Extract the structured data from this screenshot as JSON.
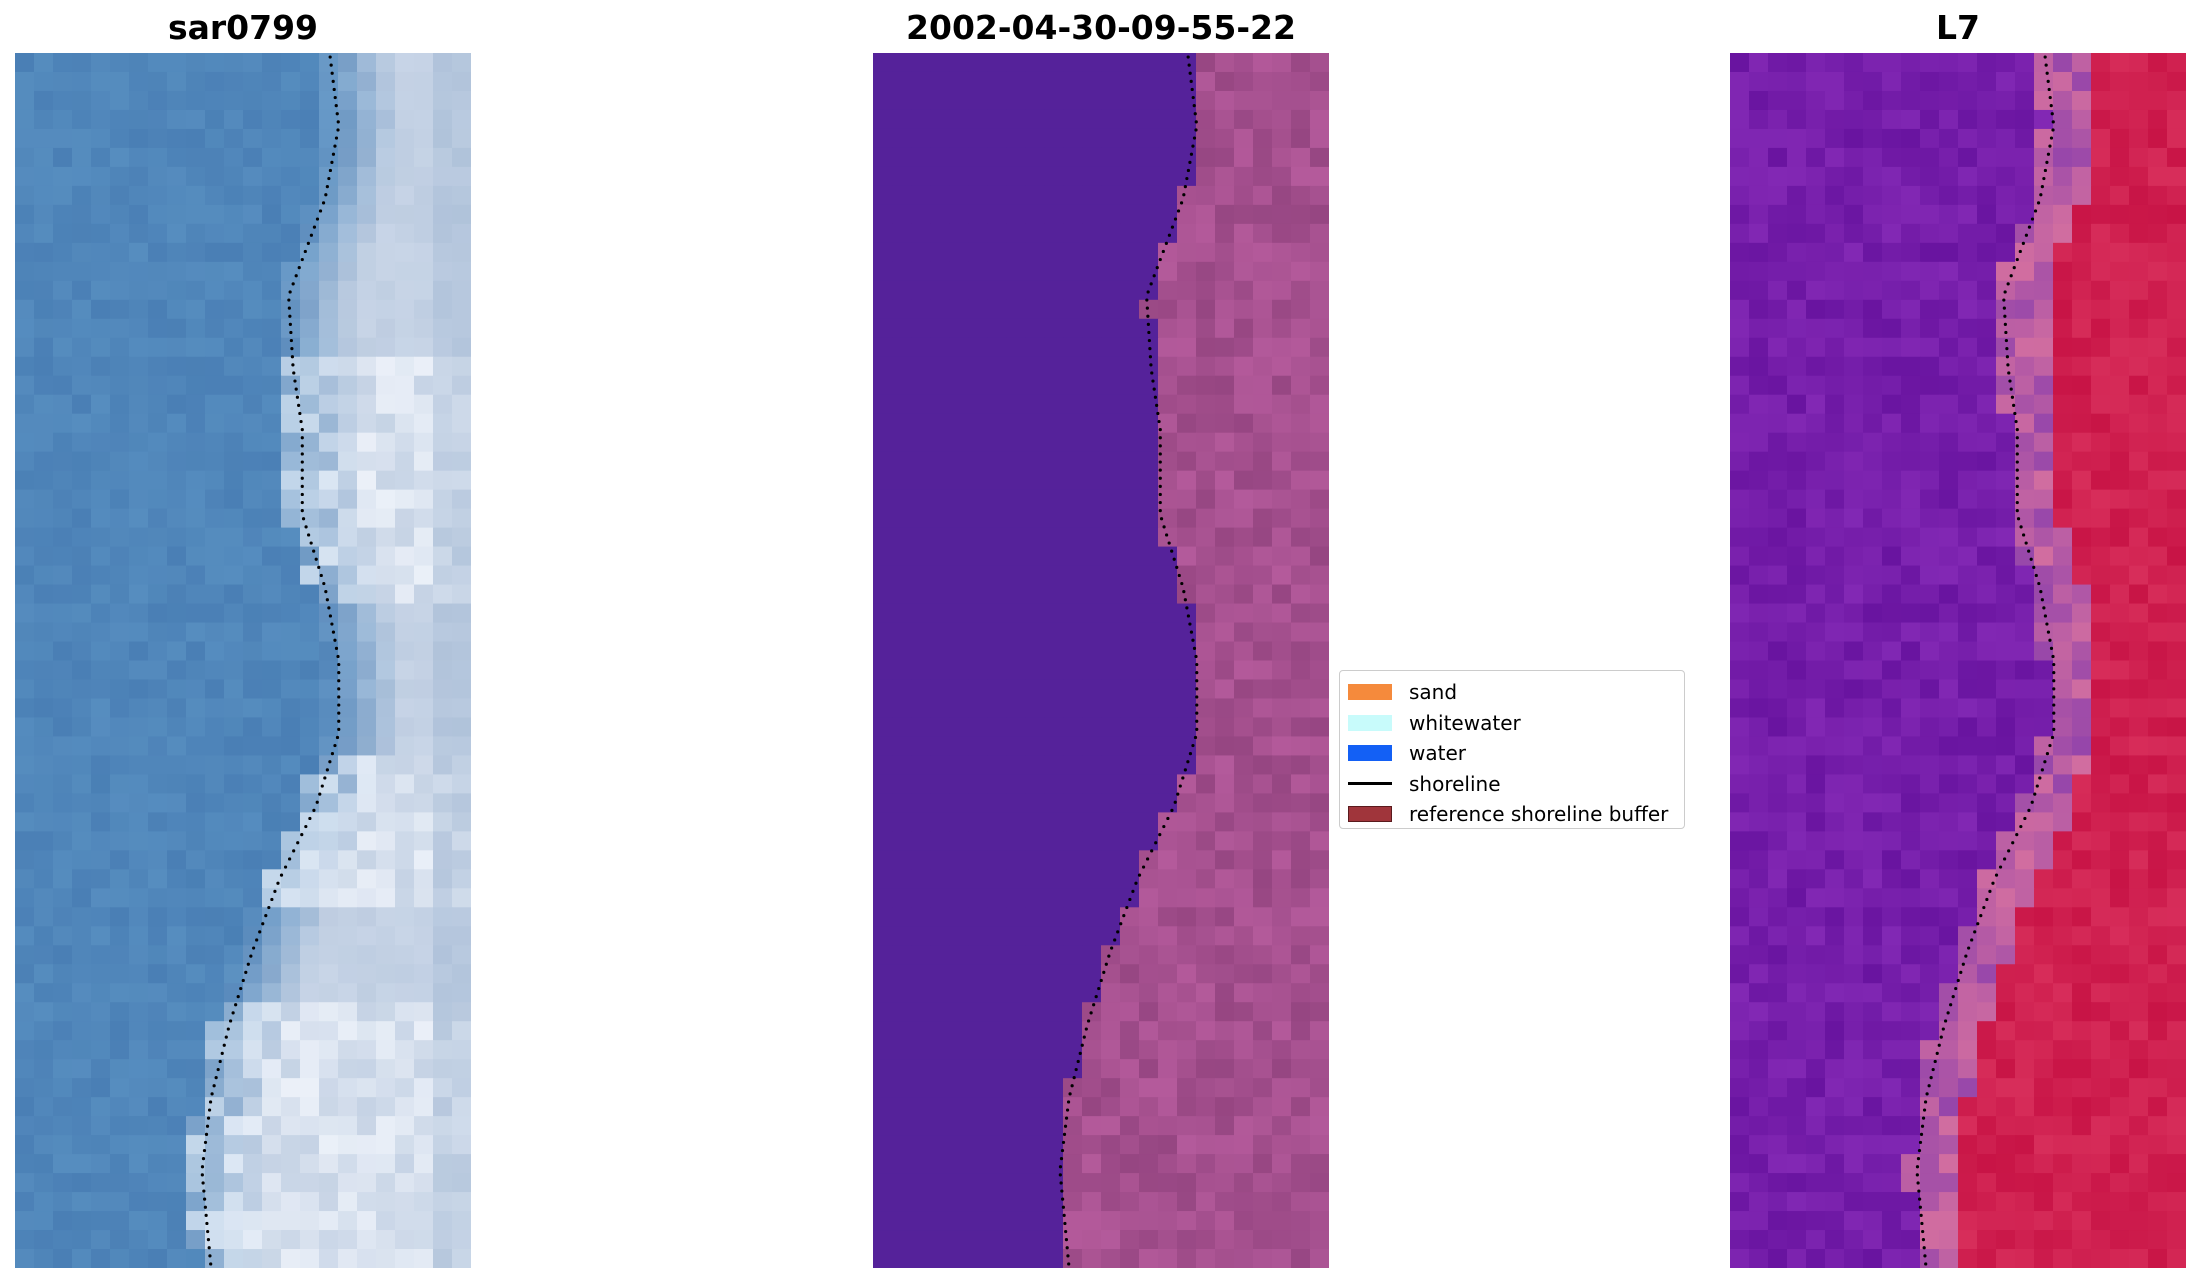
{
  "panels": [
    {
      "id": "rgb",
      "title": "sar0799"
    },
    {
      "id": "classified",
      "title": "2002-04-30-09-55-22"
    },
    {
      "id": "index",
      "title": "L7"
    }
  ],
  "legend": {
    "items": [
      {
        "label": "sand",
        "kind": "patch",
        "color": "#f58a3c"
      },
      {
        "label": "whitewater",
        "kind": "patch",
        "color": "#c8fbfb"
      },
      {
        "label": "water",
        "kind": "patch",
        "color": "#1360f5"
      },
      {
        "label": "shoreline",
        "kind": "line",
        "color": "#000000"
      },
      {
        "label": "reference shoreline buffer",
        "kind": "patch",
        "color": "#a0353b",
        "edge": "#5a1a1d"
      }
    ]
  },
  "colors": {
    "rgb_water": "#4a7fb5",
    "rgb_surf": "#c8d6e6",
    "rgb_whitewater": "#eef3f8",
    "classified_water": "#55229a",
    "classified_land": "#9a4a88",
    "index_water": "#6a1aa0",
    "index_land": "#c81040",
    "shoreline_dots": "#000000"
  }
}
